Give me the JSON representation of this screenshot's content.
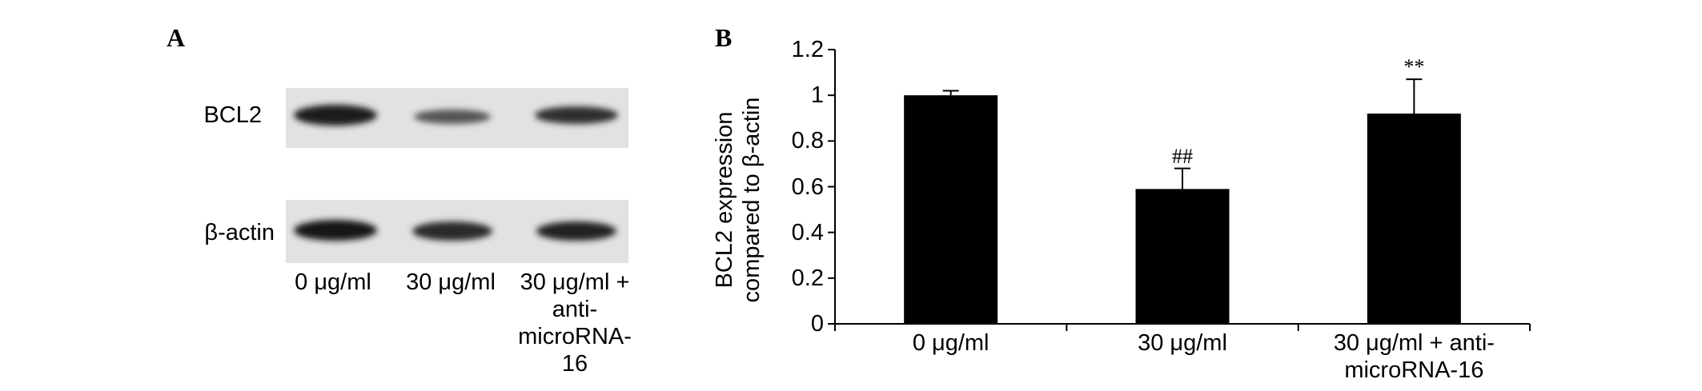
{
  "panel_a": {
    "label": "A",
    "rows": [
      "BCL2",
      "β-actin"
    ],
    "lanes": [
      "0 μg/ml",
      "30 μg/ml",
      "30 μg/ml + anti-microRNA-16"
    ]
  },
  "chart_data": {
    "type": "bar",
    "panel_label": "B",
    "y_label": "BCL2 expression compared to β-actin",
    "categories": [
      "0 μg/ml",
      "30 μg/ml",
      "30 μg/ml + anti-microRNA-16"
    ],
    "values": [
      1.0,
      0.59,
      0.92
    ],
    "errors": [
      0.02,
      0.09,
      0.15
    ],
    "color": "#000000",
    "ylim": [
      0,
      1.2
    ],
    "yticks": [
      0,
      0.2,
      0.4,
      0.6,
      0.8,
      1,
      1.2
    ],
    "annotations": [
      {
        "category": "30 μg/ml",
        "text": "##"
      },
      {
        "category": "30 μg/ml + anti-microRNA-16",
        "text": "**"
      }
    ]
  }
}
